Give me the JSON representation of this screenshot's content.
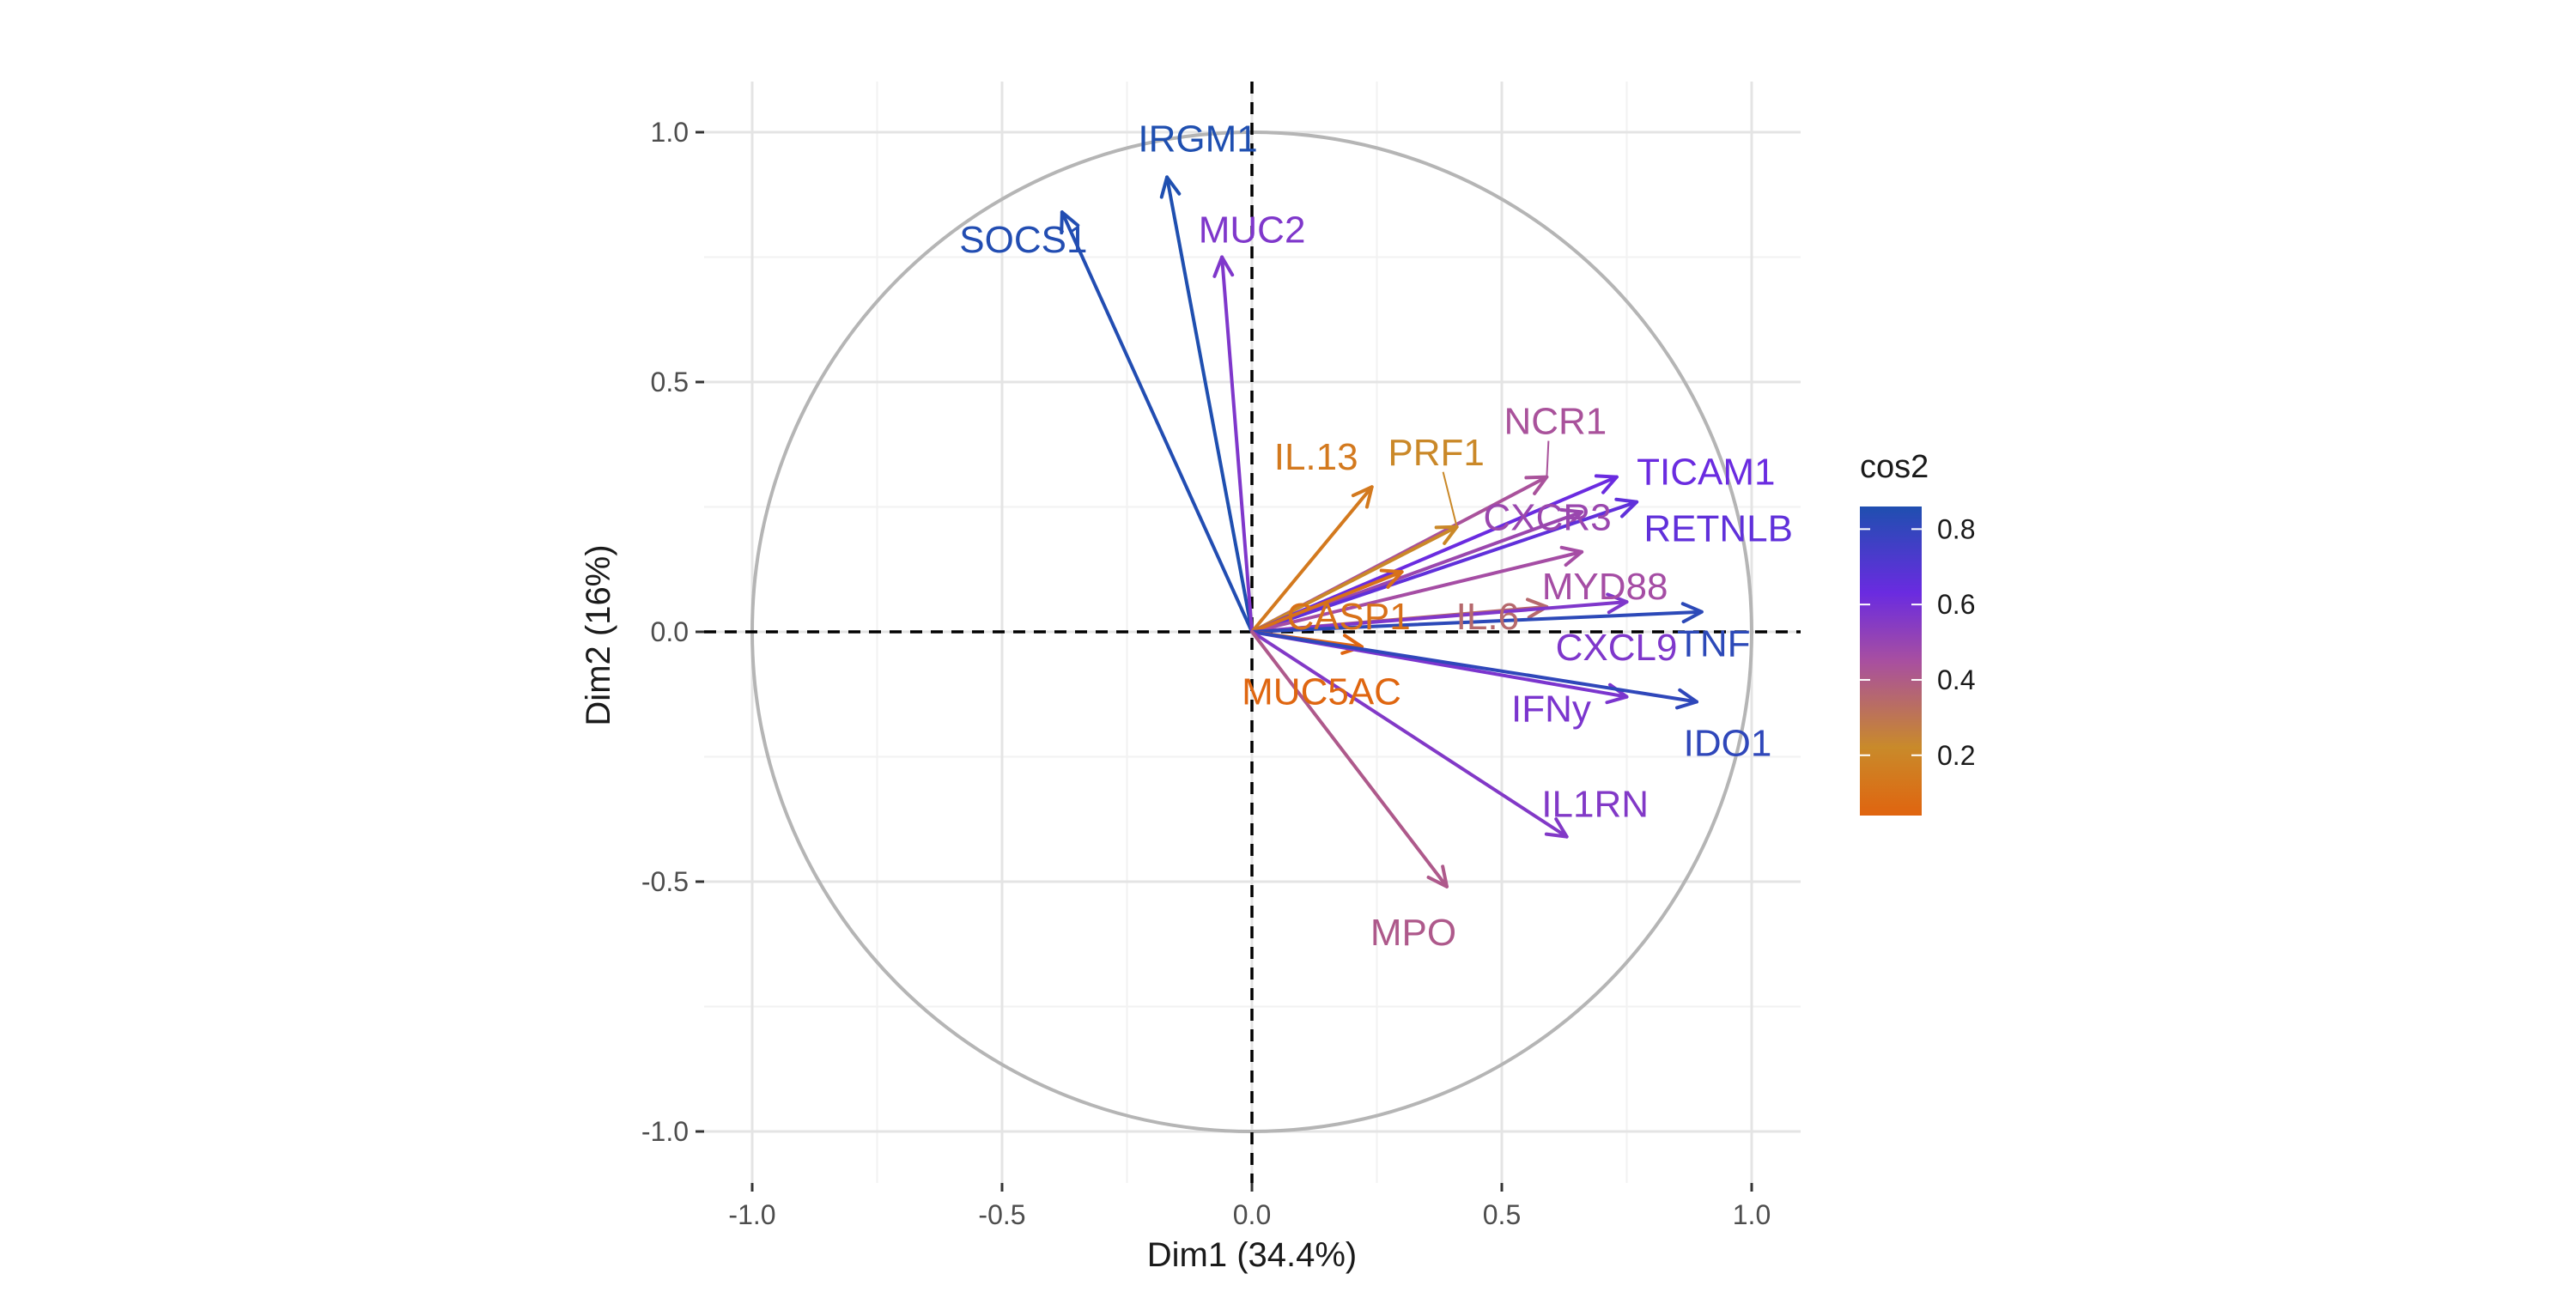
{
  "chart_data": {
    "type": "scatter",
    "xlabel": "Dim1 (34.4%)",
    "ylabel": "Dim2 (16%)",
    "xlim": [
      -1.0,
      1.0
    ],
    "ylim": [
      -1.0,
      1.0
    ],
    "x_ticks": [
      "-1.0",
      "-0.5",
      "0.0",
      "0.5",
      "1.0"
    ],
    "y_ticks": [
      "1.0",
      "0.5",
      "0.0",
      "-0.5",
      "-1.0"
    ],
    "grid": true,
    "correlation_circle": true,
    "legend": {
      "title": "cos2",
      "placement": "right",
      "ticks": [
        "0.8",
        "0.6",
        "0.4",
        "0.2"
      ],
      "range": [
        0.04,
        0.86
      ],
      "colors": {
        "low": "#E0640F",
        "mid_low": "#C98A2A",
        "mid": "#A84FA0",
        "mid_high": "#6A2BE0",
        "high": "#1F4FB0"
      }
    },
    "variables": [
      {
        "name": "IRGM1",
        "x": -0.17,
        "y": 0.91,
        "cos2": 0.86
      },
      {
        "name": "SOCS1",
        "x": -0.38,
        "y": 0.84,
        "cos2": 0.85
      },
      {
        "name": "MUC2",
        "x": -0.06,
        "y": 0.75,
        "cos2": 0.57
      },
      {
        "name": "NCR1",
        "x": 0.59,
        "y": 0.31,
        "cos2": 0.44
      },
      {
        "name": "IL.13",
        "x": 0.24,
        "y": 0.29,
        "cos2": 0.14
      },
      {
        "name": "PRF1",
        "x": 0.41,
        "y": 0.21,
        "cos2": 0.21
      },
      {
        "name": "TICAM1",
        "x": 0.73,
        "y": 0.31,
        "cos2": 0.63
      },
      {
        "name": "CXCR3",
        "x": 0.66,
        "y": 0.24,
        "cos2": 0.49
      },
      {
        "name": "RETNLB",
        "x": 0.77,
        "y": 0.26,
        "cos2": 0.66
      },
      {
        "name": "MYD88",
        "x": 0.66,
        "y": 0.16,
        "cos2": 0.46
      },
      {
        "name": "CASP1",
        "x": 0.3,
        "y": 0.12,
        "cos2": 0.1
      },
      {
        "name": "IL.6",
        "x": 0.59,
        "y": 0.05,
        "cos2": 0.35
      },
      {
        "name": "CXCL9",
        "x": 0.75,
        "y": 0.06,
        "cos2": 0.57
      },
      {
        "name": "TNF",
        "x": 0.9,
        "y": 0.04,
        "cos2": 0.82
      },
      {
        "name": "MUC5AC",
        "x": 0.22,
        "y": -0.03,
        "cos2": 0.05
      },
      {
        "name": "IFNy",
        "x": 0.75,
        "y": -0.13,
        "cos2": 0.58
      },
      {
        "name": "IDO1",
        "x": 0.89,
        "y": -0.14,
        "cos2": 0.81
      },
      {
        "name": "IL1RN",
        "x": 0.63,
        "y": -0.41,
        "cos2": 0.56
      },
      {
        "name": "MPO",
        "x": 0.39,
        "y": -0.51,
        "cos2": 0.41
      }
    ]
  }
}
